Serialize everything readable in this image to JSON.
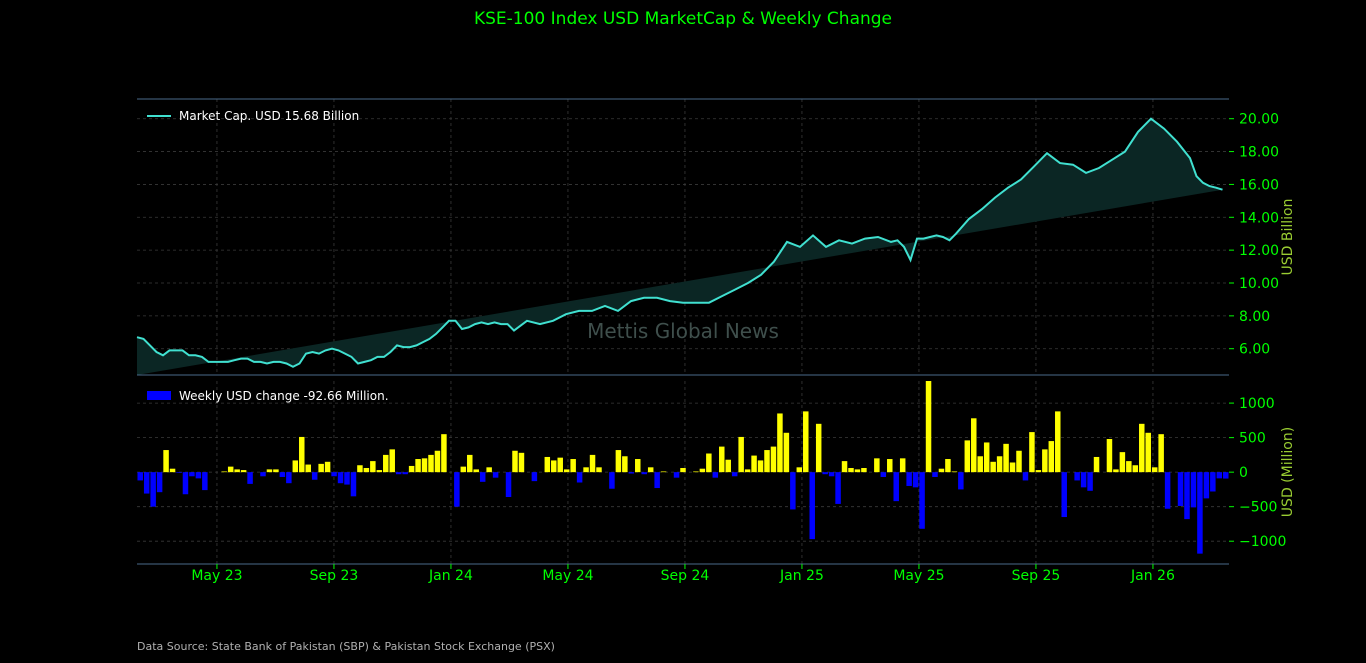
{
  "title": "KSE-100 Index USD MarketCap & Weekly Change",
  "source_note": "Data Source: State Bank of Pakistan (SBP) & Pakistan Stock Exchange (PSX)",
  "watermark": "Mettis Global News",
  "colors": {
    "background": "#000000",
    "line": "#40e0d0",
    "area_fill": "#0b2624",
    "bar_positive": "#ffff00",
    "bar_negative": "#0000ff",
    "tick_text": "#00ff00",
    "axis_title": "#9acd32",
    "grid": "#3a3a3a"
  },
  "chart_data": [
    {
      "type": "area",
      "legend_label": "Market Cap. USD 15.68 Billion",
      "ylabel": "USD Billion",
      "ylim": [
        4.4,
        21.2
      ],
      "yticks": [
        "6.00",
        "8.00",
        "10.00",
        "12.00",
        "14.00",
        "16.00",
        "18.00",
        "20.00"
      ],
      "ytick_values": [
        6,
        8,
        10,
        12,
        14,
        16,
        18,
        20
      ],
      "xlim_week": [
        0,
        168
      ],
      "grid": true,
      "legend_placement": "top-left",
      "anchors_week": [
        0,
        1,
        2,
        3,
        4,
        5,
        6,
        7,
        8,
        9,
        10,
        11,
        12,
        13,
        14,
        15,
        16,
        17,
        18,
        19,
        20,
        21,
        22,
        23,
        24,
        25,
        26,
        27,
        28,
        29,
        30,
        31,
        32,
        33,
        34,
        35,
        36,
        37,
        38,
        39,
        40,
        41,
        42,
        43,
        44,
        45,
        46,
        47,
        48,
        49,
        50,
        51,
        52,
        53,
        54,
        55,
        56,
        57,
        58,
        59,
        60,
        62,
        64,
        66,
        68,
        70,
        72,
        74,
        76,
        78,
        80,
        82,
        84,
        86,
        88,
        90,
        92,
        94,
        96,
        98,
        100,
        102,
        104,
        106,
        108,
        110,
        112,
        114,
        116,
        117,
        118,
        119,
        120,
        121,
        122,
        123,
        124,
        125,
        126,
        128,
        130,
        132,
        134,
        136,
        138,
        140,
        142,
        144,
        146,
        148,
        150,
        152,
        154,
        156,
        158,
        160,
        162,
        163,
        164,
        165,
        166,
        167,
        168
      ],
      "anchors_value": [
        6.7,
        6.6,
        6.2,
        5.8,
        5.6,
        5.9,
        5.9,
        5.9,
        5.6,
        5.6,
        5.5,
        5.2,
        5.2,
        5.2,
        5.2,
        5.3,
        5.4,
        5.4,
        5.2,
        5.2,
        5.1,
        5.2,
        5.2,
        5.1,
        4.9,
        5.1,
        5.7,
        5.8,
        5.7,
        5.9,
        6.0,
        5.9,
        5.7,
        5.5,
        5.1,
        5.2,
        5.3,
        5.5,
        5.5,
        5.8,
        6.2,
        6.1,
        6.1,
        6.2,
        6.4,
        6.6,
        6.9,
        7.3,
        7.7,
        7.7,
        7.2,
        7.3,
        7.5,
        7.6,
        7.5,
        7.6,
        7.5,
        7.5,
        7.1,
        7.4,
        7.7,
        7.5,
        7.7,
        8.1,
        8.3,
        8.3,
        8.6,
        8.3,
        8.9,
        9.1,
        9.1,
        8.9,
        8.8,
        8.8,
        8.8,
        9.2,
        9.6,
        10.0,
        10.5,
        11.3,
        12.5,
        12.2,
        12.9,
        12.2,
        12.6,
        12.4,
        12.7,
        12.8,
        12.5,
        12.6,
        12.2,
        11.4,
        12.7,
        12.7,
        12.8,
        12.9,
        12.8,
        12.6,
        13.0,
        13.9,
        14.5,
        15.2,
        15.8,
        16.3,
        17.1,
        17.9,
        17.3,
        17.2,
        16.7,
        17.0,
        17.5,
        18.0,
        19.2,
        20.0,
        19.4,
        18.6,
        17.6,
        16.5,
        16.1,
        15.9,
        15.8,
        15.68
      ]
    },
    {
      "type": "bar",
      "legend_label": "Weekly USD change -92.66 Million.",
      "ylabel": "USD (Million)",
      "ylim": [
        -1330,
        1320
      ],
      "yticks": [
        "−1000",
        "−500",
        "0",
        "500",
        "1000"
      ],
      "ytick_values": [
        -1000,
        -500,
        0,
        500,
        1000
      ],
      "grid": true,
      "legend_placement": "top-left",
      "x_tick_labels": [
        "May 23",
        "Sep 23",
        "Jan 24",
        "May 24",
        "Sep 24",
        "Jan 25",
        "May 25",
        "Sep 25",
        "Jan 26"
      ],
      "x_tick_weeks": [
        12.3,
        30.3,
        48.3,
        66.3,
        84.3,
        102.3,
        120.3,
        138.3,
        156.3
      ],
      "values": [
        -120,
        -310,
        -500,
        -290,
        320,
        50,
        -10,
        -320,
        -60,
        -90,
        -260,
        0,
        0,
        10,
        80,
        40,
        30,
        -170,
        0,
        -60,
        40,
        40,
        -70,
        -160,
        170,
        510,
        110,
        -110,
        120,
        150,
        -60,
        -160,
        -180,
        -350,
        100,
        60,
        160,
        30,
        250,
        330,
        -30,
        -30,
        90,
        190,
        200,
        250,
        310,
        550,
        0,
        -500,
        80,
        250,
        40,
        -140,
        70,
        -80,
        0,
        -360,
        310,
        280,
        0,
        -130,
        0,
        220,
        170,
        210,
        40,
        190,
        -150,
        70,
        250,
        70,
        0,
        -240,
        320,
        230,
        -20,
        190,
        -30,
        70,
        -230,
        10,
        0,
        -80,
        60,
        0,
        10,
        50,
        270,
        -80,
        370,
        180,
        -60,
        510,
        40,
        240,
        170,
        320,
        370,
        850,
        570,
        -540,
        70,
        880,
        -970,
        700,
        -30,
        -60,
        -460,
        160,
        60,
        40,
        60,
        0,
        200,
        -70,
        190,
        -420,
        200,
        -200,
        -220,
        -820,
        1320,
        -70,
        50,
        190,
        10,
        -250,
        460,
        780,
        230,
        430,
        150,
        230,
        410,
        140,
        310,
        -120,
        580,
        30,
        330,
        450,
        880,
        -650,
        0,
        -120,
        -220,
        -270,
        220,
        0,
        480,
        40,
        290,
        160,
        100,
        700,
        570,
        70,
        550,
        -530,
        0,
        -490,
        -680,
        -510,
        -1180,
        -380,
        -280,
        -90,
        -93
      ]
    }
  ]
}
